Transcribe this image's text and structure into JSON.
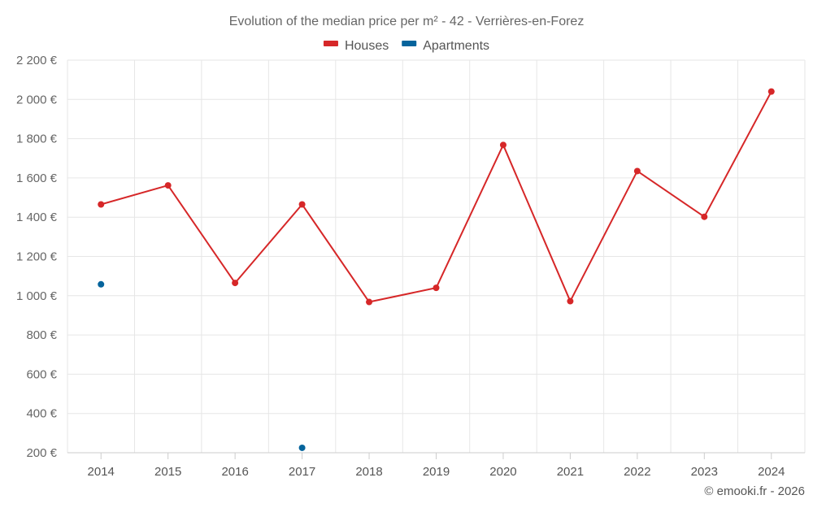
{
  "chart_data": {
    "type": "line",
    "title": "Evolution of the median price per m² - 42 - Verrières-en-Forez",
    "categories": [
      "2014",
      "2015",
      "2016",
      "2017",
      "2018",
      "2019",
      "2020",
      "2021",
      "2022",
      "2023",
      "2024"
    ],
    "series": [
      {
        "name": "Houses",
        "color": "#d62728",
        "style": "line-with-markers",
        "values": [
          1465,
          1562,
          1065,
          1465,
          968,
          1040,
          1768,
          972,
          1635,
          1402,
          2040
        ]
      },
      {
        "name": "Apartments",
        "color": "#05649c",
        "style": "markers-only",
        "values": [
          1058,
          null,
          null,
          225,
          null,
          null,
          null,
          null,
          null,
          null,
          null
        ]
      }
    ],
    "ylim": [
      200,
      2200
    ],
    "yticks": [
      200,
      400,
      600,
      800,
      1000,
      1200,
      1400,
      1600,
      1800,
      2000,
      2200
    ],
    "ytick_labels": [
      "200 €",
      "400 €",
      "600 €",
      "800 €",
      "1 000 €",
      "1 200 €",
      "1 400 €",
      "1 600 €",
      "1 800 €",
      "2 000 €",
      "2 200 €"
    ],
    "grid": true,
    "legend_position": "top-center",
    "xlabel": "",
    "ylabel": ""
  },
  "credit": "© emooki.fr - 2026"
}
